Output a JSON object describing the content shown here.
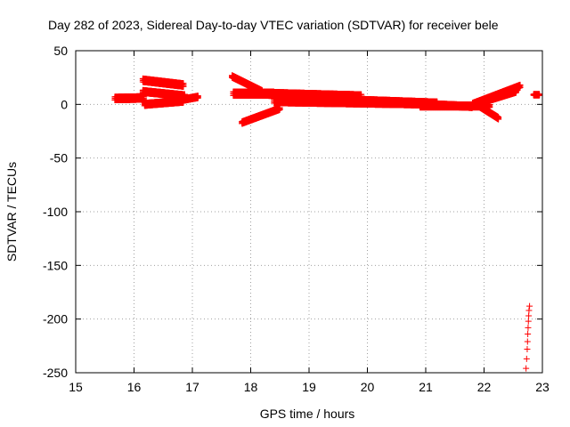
{
  "chart_data": {
    "type": "scatter",
    "title": "Day 282 of 2023, Sidereal Day-to-day VTEC variation (SDTVAR) for receiver bele",
    "xlabel": "GPS time / hours",
    "ylabel": "SDTVAR / TECUs",
    "xlim": [
      15,
      23
    ],
    "ylim": [
      -250,
      50
    ],
    "xticks": [
      "15",
      "16",
      "17",
      "18",
      "19",
      "20",
      "21",
      "22",
      "23"
    ],
    "yticks": [
      "50",
      "0",
      "-50",
      "-100",
      "-150",
      "-200",
      "-250"
    ],
    "grid": true,
    "marker": "+",
    "color": "#ff0000",
    "tracks": [
      {
        "t0": 15.67,
        "t1": 16.17,
        "a": 5.5,
        "b": 6.0,
        "w": 3.0
      },
      {
        "t0": 16.15,
        "t1": 16.85,
        "a": 22.5,
        "b": 18.0,
        "w": 3.0
      },
      {
        "t0": 16.15,
        "t1": 16.87,
        "a": 12.0,
        "b": 8.0,
        "w": 2.5
      },
      {
        "t0": 16.18,
        "t1": 16.85,
        "a": 0.0,
        "b": 3.0,
        "w": 2.5
      },
      {
        "t0": 16.8,
        "t1": 17.1,
        "a": 4.0,
        "b": 7.0,
        "w": 2.0
      },
      {
        "t0": 17.7,
        "t1": 18.4,
        "a": 10.0,
        "b": 10.0,
        "w": 3.5
      },
      {
        "t0": 17.68,
        "t1": 18.2,
        "a": 26.0,
        "b": 12.0,
        "w": 2.0
      },
      {
        "t0": 17.85,
        "t1": 18.5,
        "a": -17.0,
        "b": -4.0,
        "w": 2.0
      },
      {
        "t0": 18.2,
        "t1": 19.9,
        "a": 10.0,
        "b": 7.5,
        "w": 3.5
      },
      {
        "t0": 18.4,
        "t1": 20.8,
        "a": 3.0,
        "b": 1.0,
        "w": 3.5
      },
      {
        "t0": 18.6,
        "t1": 21.2,
        "a": 6.0,
        "b": 1.0,
        "w": 3.0
      },
      {
        "t0": 19.8,
        "t1": 21.8,
        "a": 3.0,
        "b": -2.0,
        "w": 2.5
      },
      {
        "t0": 20.9,
        "t1": 22.1,
        "a": -1.5,
        "b": -1.5,
        "w": 2.5
      },
      {
        "t0": 21.8,
        "t1": 22.62,
        "a": 0.0,
        "b": 17.0,
        "w": 2.5
      },
      {
        "t0": 21.9,
        "t1": 22.55,
        "a": 1.0,
        "b": 12.0,
        "w": 2.0
      },
      {
        "t0": 21.9,
        "t1": 22.25,
        "a": -1.0,
        "b": -13.0,
        "w": 2.0
      },
      {
        "t0": 22.85,
        "t1": 22.95,
        "a": 9.0,
        "b": 9.0,
        "w": 1.0
      }
    ],
    "points": [
      {
        "x": 22.72,
        "y": -246
      },
      {
        "x": 22.73,
        "y": -237
      },
      {
        "x": 22.74,
        "y": -228
      },
      {
        "x": 22.745,
        "y": -221
      },
      {
        "x": 22.75,
        "y": -214
      },
      {
        "x": 22.755,
        "y": -208
      },
      {
        "x": 22.76,
        "y": -202
      },
      {
        "x": 22.765,
        "y": -197
      },
      {
        "x": 22.77,
        "y": -192
      },
      {
        "x": 22.78,
        "y": -188
      }
    ]
  }
}
